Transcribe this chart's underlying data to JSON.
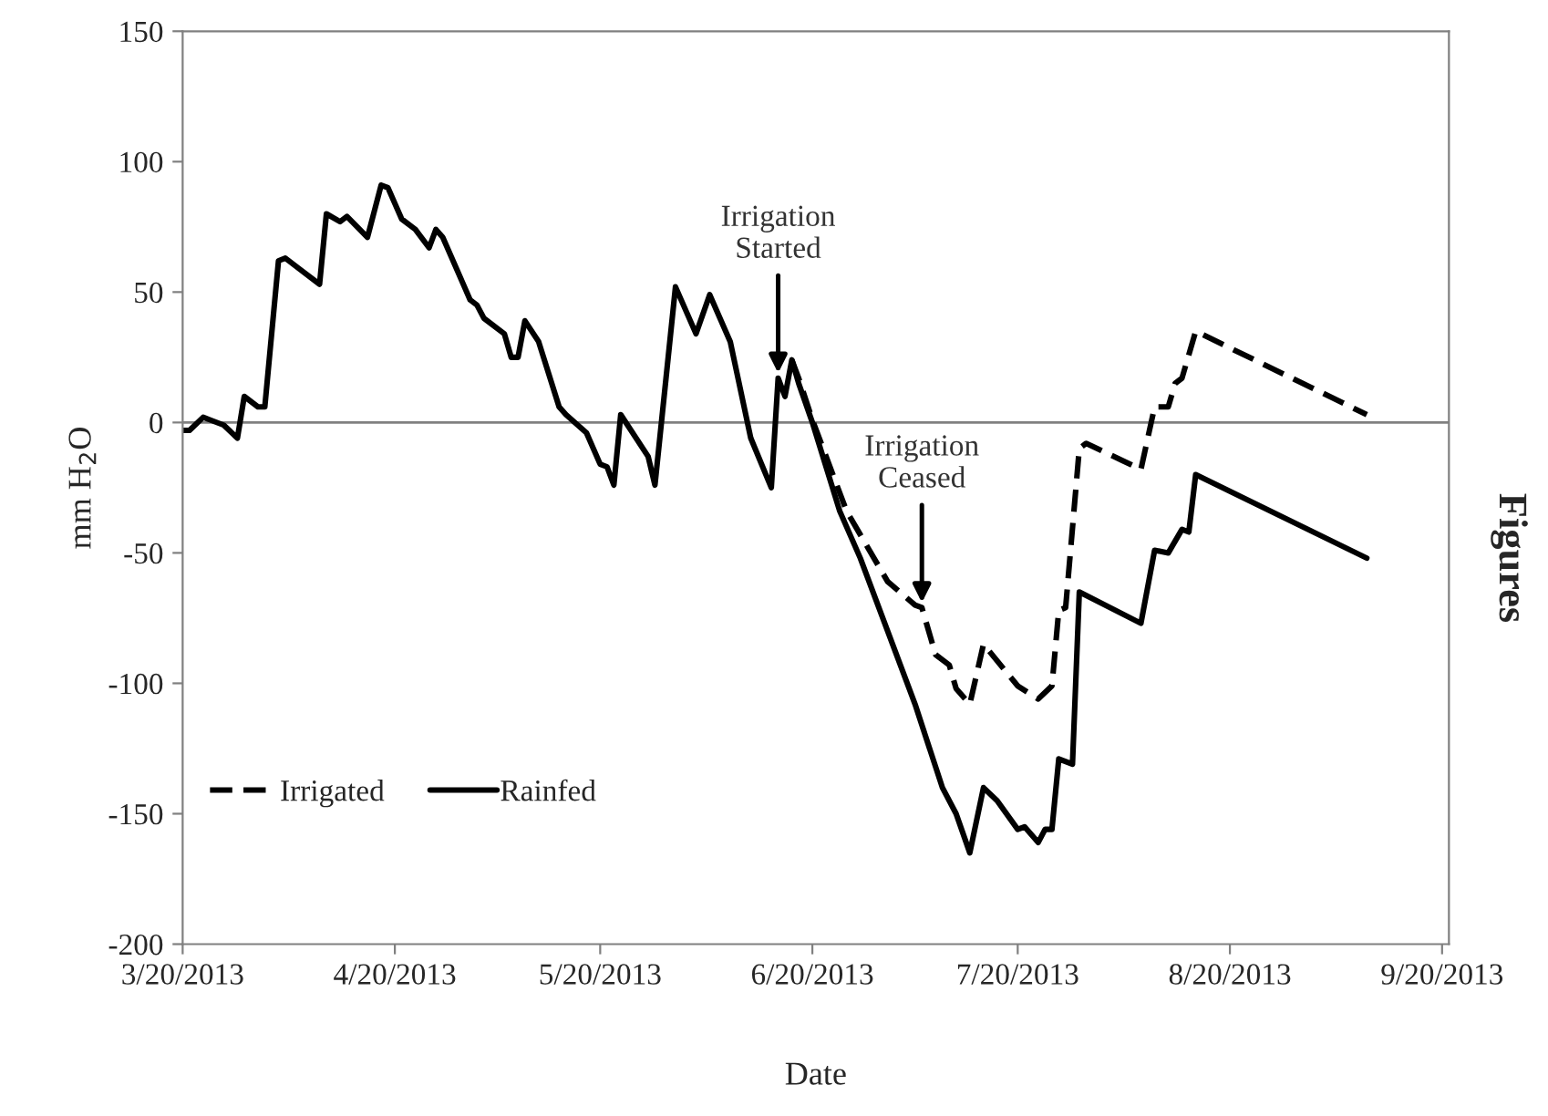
{
  "chart_data": {
    "type": "line",
    "xlabel": "Date",
    "ylabel": "mm H$_{2}$O",
    "series": [
      {
        "name": "Irrigated",
        "color": "#000000",
        "line_style": "dashed",
        "x": [
          "2013-06-17",
          "2013-06-18",
          "2013-06-20",
          "2013-06-25",
          "2013-06-27",
          "2013-07-01",
          "2013-07-05",
          "2013-07-06",
          "2013-07-08",
          "2013-07-10",
          "2013-07-11",
          "2013-07-13",
          "2013-07-15",
          "2013-07-20",
          "2013-07-23",
          "2013-07-25",
          "2013-07-26",
          "2013-07-27",
          "2013-07-29",
          "2013-07-30",
          "2013-08-07",
          "2013-08-09",
          "2013-08-11",
          "2013-08-12",
          "2013-08-13",
          "2013-08-15",
          "2013-09-09"
        ],
        "values": [
          24,
          17,
          1,
          -34,
          -43,
          -61,
          -70,
          -71,
          -89,
          -93,
          -102,
          -108,
          -85,
          -101,
          -106,
          -101,
          -72,
          -71,
          -10,
          -8,
          -18,
          6,
          6,
          15,
          17,
          35,
          3
        ]
      },
      {
        "name": "Rainfed",
        "color": "#000000",
        "line_style": "solid",
        "x": [
          "2013-03-20",
          "2013-03-21",
          "2013-03-23",
          "2013-03-24",
          "2013-03-26",
          "2013-03-28",
          "2013-03-29",
          "2013-03-31",
          "2013-04-01",
          "2013-04-03",
          "2013-04-04",
          "2013-04-06",
          "2013-04-09",
          "2013-04-10",
          "2013-04-12",
          "2013-04-13",
          "2013-04-16",
          "2013-04-18",
          "2013-04-19",
          "2013-04-21",
          "2013-04-23",
          "2013-04-25",
          "2013-04-26",
          "2013-04-27",
          "2013-05-01",
          "2013-05-02",
          "2013-05-03",
          "2013-05-06",
          "2013-05-07",
          "2013-05-08",
          "2013-05-09",
          "2013-05-11",
          "2013-05-14",
          "2013-05-15",
          "2013-05-18",
          "2013-05-20",
          "2013-05-21",
          "2013-05-22",
          "2013-05-23",
          "2013-05-27",
          "2013-05-28",
          "2013-05-31",
          "2013-06-03",
          "2013-06-05",
          "2013-06-08",
          "2013-06-11",
          "2013-06-14",
          "2013-06-15",
          "2013-06-16",
          "2013-06-17",
          "2013-06-18",
          "2013-06-20",
          "2013-06-24",
          "2013-06-27",
          "2013-07-05",
          "2013-07-09",
          "2013-07-11",
          "2013-07-13",
          "2013-07-15",
          "2013-07-17",
          "2013-07-20",
          "2013-07-21",
          "2013-07-23",
          "2013-07-24",
          "2013-07-25",
          "2013-07-26",
          "2013-07-28",
          "2013-07-29",
          "2013-08-07",
          "2013-08-09",
          "2013-08-11",
          "2013-08-13",
          "2013-08-14",
          "2013-08-15",
          "2013-09-09"
        ],
        "values": [
          -3,
          -3,
          2,
          1,
          -1,
          -6,
          10,
          6,
          6,
          62,
          63,
          59,
          53,
          80,
          77,
          79,
          71,
          91,
          90,
          78,
          74,
          67,
          74,
          71,
          47,
          45,
          40,
          34,
          25,
          25,
          39,
          31,
          6,
          3,
          -4,
          -16,
          -17,
          -24,
          3,
          -13,
          -24,
          52,
          34,
          49,
          31,
          -6,
          -25,
          17,
          10,
          24,
          15,
          0,
          -34,
          -52,
          -108,
          -140,
          -150,
          -165,
          -140,
          -145,
          -156,
          -155,
          -161,
          -156,
          -156,
          -129,
          -131,
          -65,
          -77,
          -49,
          -50,
          -41,
          -42,
          -20,
          -52
        ]
      }
    ],
    "xlim": [
      "2013-03-20",
      "2013-09-21"
    ],
    "xticks": [
      {
        "value": "2013-03-20",
        "label": "3/20/2013"
      },
      {
        "value": "2013-04-20",
        "label": "4/20/2013"
      },
      {
        "value": "2013-05-20",
        "label": "5/20/2013"
      },
      {
        "value": "2013-06-20",
        "label": "6/20/2013"
      },
      {
        "value": "2013-07-20",
        "label": "7/20/2013"
      },
      {
        "value": "2013-08-20",
        "label": "8/20/2013"
      },
      {
        "value": "2013-09-20",
        "label": "9/20/2013"
      }
    ],
    "ylim": [
      -200,
      150
    ],
    "yticks": [
      -200,
      -150,
      -100,
      -50,
      0,
      50,
      100,
      150
    ],
    "ref_lines": [
      {
        "axis": "y",
        "value": 0,
        "color": "#808080"
      }
    ],
    "annotations": [
      {
        "text": "Irrigation\nStarted",
        "x": "2013-06-15",
        "y": 17
      },
      {
        "text": "Irrigation\nCeased",
        "x": "2013-07-06",
        "y": -71
      },
      "Figures"
    ],
    "legend": "bottom left",
    "grid": false
  }
}
